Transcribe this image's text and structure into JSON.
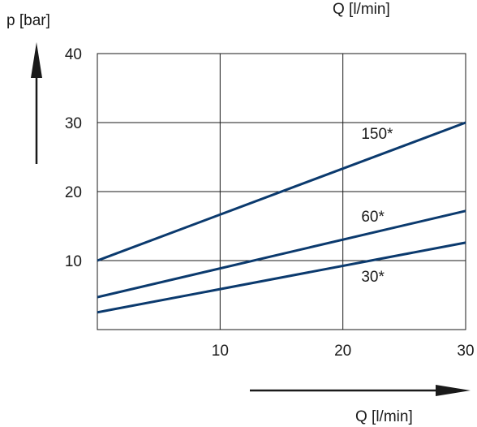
{
  "chart_data": {
    "type": "line",
    "ylabel": "p [bar]",
    "xlabel_top": "Q [l/min]",
    "xlabel": "Q [l/min]",
    "xlim": [
      0,
      30
    ],
    "ylim": [
      0,
      40
    ],
    "x_ticks": [
      10,
      20,
      30
    ],
    "y_ticks": [
      10,
      20,
      30,
      40
    ],
    "grid": true,
    "series": [
      {
        "name": "150*",
        "x": [
          0,
          30
        ],
        "y": [
          10,
          30
        ],
        "color": "#0b3a6e"
      },
      {
        "name": "60*",
        "x": [
          0,
          30
        ],
        "y": [
          4.7,
          17.2
        ],
        "color": "#0b3a6e"
      },
      {
        "name": "30*",
        "x": [
          0,
          30
        ],
        "y": [
          2.5,
          12.6
        ],
        "color": "#0b3a6e"
      }
    ]
  }
}
